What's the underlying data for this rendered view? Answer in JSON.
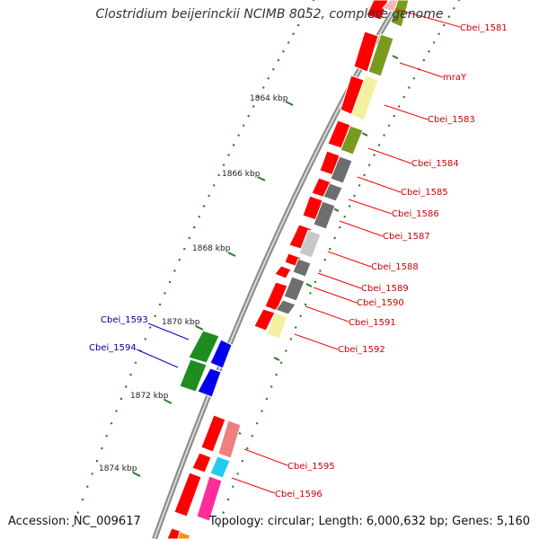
{
  "title": "Clostridium beijerinckii NCIMB 8052, complete genome",
  "footer": {
    "accession": "Accession: NC_009617",
    "topology": "Topology: circular; Length: 6,000,632 bp; Genes: 5,160"
  },
  "scale": {
    "ticks": [
      {
        "label": "1864 kbp"
      },
      {
        "label": "1866 kbp"
      },
      {
        "label": "1868 kbp"
      },
      {
        "label": "1870 kbp"
      },
      {
        "label": "1872 kbp"
      },
      {
        "label": "1874 kbp"
      }
    ]
  },
  "genes": {
    "forward": [
      {
        "name": "Cbei_1581"
      },
      {
        "name": "mraY"
      },
      {
        "name": "Cbei_1583"
      },
      {
        "name": "Cbei_1584"
      },
      {
        "name": "Cbei_1585"
      },
      {
        "name": "Cbei_1586"
      },
      {
        "name": "Cbei_1587"
      },
      {
        "name": "Cbei_1588"
      },
      {
        "name": "Cbei_1589"
      },
      {
        "name": "Cbei_1590"
      },
      {
        "name": "Cbei_1591"
      },
      {
        "name": "Cbei_1592"
      },
      {
        "name": "Cbei_1595"
      },
      {
        "name": "Cbei_1596"
      }
    ],
    "reverse": [
      {
        "name": "Cbei_1593"
      },
      {
        "name": "Cbei_1594"
      }
    ]
  },
  "colors": {
    "forward_label": "#cc0000",
    "reverse_label": "#000099",
    "cds_red": "#ff0000",
    "olive": "#7a9a1e",
    "pale_yellow": "#f5f0a0",
    "gray_dark": "#6e6e6e",
    "gray_light": "#c8c8c8",
    "green": "#1e8c1e",
    "blue": "#0000ee",
    "salmon": "#f08080",
    "cyan": "#22ccee",
    "magenta": "#ff2d9b",
    "tick_green": "#2a7a2a",
    "backbone": "#888888"
  }
}
